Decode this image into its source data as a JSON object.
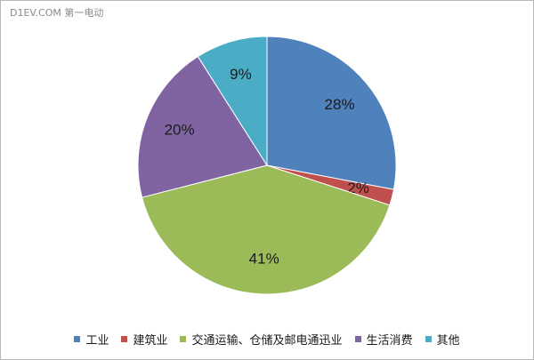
{
  "watermark": "D1EV.COM 第一电动",
  "chart_data": {
    "type": "pie",
    "categories": [
      "工业",
      "建筑业",
      "交通运输、仓储及邮电通迅业",
      "生活消费",
      "其他"
    ],
    "values": [
      28,
      2,
      41,
      20,
      9
    ],
    "labels": [
      "28%",
      "2%",
      "41%",
      "20%",
      "9%"
    ],
    "colors": [
      "#4f81bd",
      "#c0504d",
      "#9bbb59",
      "#8064a2",
      "#4bacc6"
    ],
    "start_angle_deg": 0,
    "direction": "clockwise",
    "legend_position": "bottom"
  }
}
